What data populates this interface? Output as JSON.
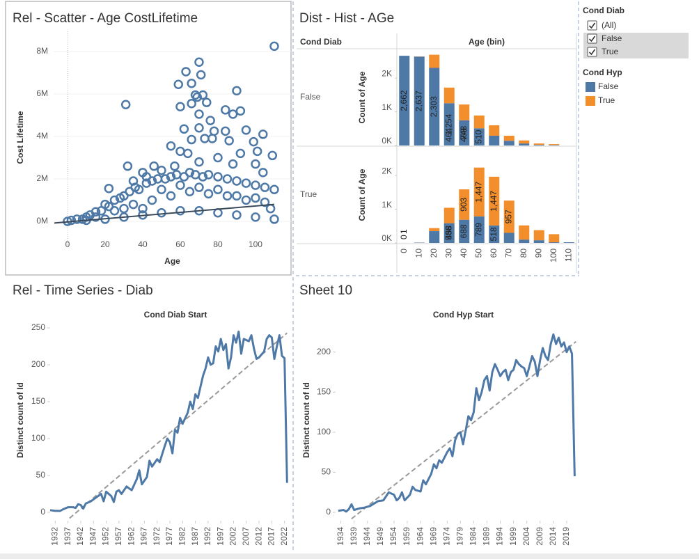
{
  "chart_data": [
    {
      "type": "scatter",
      "title": "Rel - Scatter - Age CostLifetime",
      "xlabel": "Age",
      "ylabel": "Cost Lifetime",
      "color": "#4e79a7",
      "grid": true,
      "x": [
        110,
        70,
        63,
        59,
        71,
        66,
        68,
        69,
        72,
        74,
        66,
        60,
        31,
        90,
        92,
        84,
        88,
        70,
        76,
        62,
        70,
        78,
        84,
        95,
        104,
        99,
        86,
        77,
        73,
        66,
        55,
        64,
        60,
        80,
        92,
        101,
        109,
        32,
        88,
        100,
        46,
        50,
        57,
        40,
        70,
        104,
        22,
        35,
        42,
        0,
        2,
        5,
        8,
        10,
        12,
        15,
        18,
        20,
        22,
        25,
        28,
        30,
        33,
        36,
        38,
        42,
        45,
        48,
        52,
        55,
        58,
        62,
        65,
        68,
        72,
        75,
        80,
        85,
        90,
        95,
        100,
        105,
        110,
        10,
        20,
        30,
        40,
        50,
        60,
        70,
        80,
        90,
        100,
        110,
        25,
        35,
        45,
        55,
        65,
        75,
        85,
        95,
        105,
        15,
        50,
        60,
        70,
        80,
        90,
        100,
        108,
        40,
        30
      ],
      "y": [
        8.25,
        7.5,
        7.05,
        6.45,
        6.9,
        6.5,
        5.95,
        5.85,
        5.95,
        5.6,
        5.55,
        5.4,
        5.5,
        6.15,
        5.2,
        5.25,
        5.05,
        5.05,
        4.75,
        4.35,
        4.4,
        4.25,
        4.25,
        4.3,
        4.1,
        3.75,
        3.8,
        3.9,
        3.9,
        3.85,
        3.55,
        3.2,
        3.3,
        3.0,
        3.2,
        3.3,
        3.1,
        2.6,
        2.7,
        2.7,
        2.6,
        2.4,
        2.6,
        2.3,
        2.8,
        2.3,
        1.55,
        1.9,
        2.1,
        0,
        0.05,
        0.1,
        0.1,
        0.2,
        0.3,
        0.45,
        0.5,
        0.8,
        0.7,
        1.0,
        1.1,
        1.2,
        1.4,
        1.6,
        1.5,
        1.8,
        1.9,
        2.0,
        2.0,
        2.1,
        2.2,
        2.1,
        2.3,
        2.2,
        2.1,
        2.2,
        2.1,
        2.0,
        1.9,
        1.8,
        1.7,
        1.6,
        1.5,
        0.05,
        0.1,
        0.2,
        0.3,
        0.4,
        0.5,
        0.5,
        0.4,
        0.3,
        0.2,
        0.1,
        0.5,
        0.8,
        1.0,
        1.2,
        1.4,
        1.3,
        1.2,
        1.0,
        0.9,
        0.2,
        1.5,
        1.7,
        1.6,
        1.5,
        1.2,
        1.1,
        0.6,
        0.6,
        0.6
      ],
      "trend": {
        "x": [
          -7,
          110
        ],
        "y": [
          -0.08,
          0.8
        ]
      },
      "xlim": [
        -7.4,
        118.9
      ],
      "ylim": [
        -1.05,
        8.95
      ],
      "xticks": [
        0,
        20,
        40,
        60,
        80,
        100
      ],
      "yticks": [
        {
          "value": 0,
          "label": "0M"
        },
        {
          "value": 2,
          "label": "2M"
        },
        {
          "value": 4,
          "label": "4M"
        },
        {
          "value": 6,
          "label": "6M"
        },
        {
          "value": 8,
          "label": "8M"
        }
      ]
    },
    {
      "type": "stacked-bar",
      "title": "Dist - Hist - AGe",
      "row_header": "Cond Diab",
      "column_header": "Age (bin)",
      "ylabel": "Count of Age",
      "categories": [
        0,
        10,
        20,
        30,
        40,
        50,
        60,
        70,
        80,
        90,
        100,
        110
      ],
      "ylim": [
        0,
        2850
      ],
      "yticks": [
        {
          "value": 0,
          "label": "0K"
        },
        {
          "value": 1000,
          "label": "1K"
        },
        {
          "value": 2000,
          "label": "2K"
        }
      ],
      "panels": [
        {
          "name": "False",
          "series": [
            {
              "name": "False",
              "color": "#4e79a7",
              "values": [
                2662,
                2637,
                2303,
                1254,
                748,
                510,
                290,
                140,
                60,
                20,
                15,
                0
              ],
              "value_labels": [
                "2,662",
                "2,637",
                "2,303",
                "1,254",
                "748",
                "510",
                null,
                null,
                null,
                null,
                null,
                null
              ]
            },
            {
              "name": "True",
              "color": "#f28e2b",
              "values": [
                0,
                5,
                390,
                464,
                468,
                380,
                310,
                150,
                90,
                40,
                25,
                0
              ],
              "value_labels": [
                null,
                null,
                null,
                "464",
                "468",
                null,
                null,
                null,
                null,
                null,
                null,
                null
              ]
            }
          ]
        },
        {
          "name": "True",
          "series": [
            {
              "name": "False",
              "color": "#4e79a7",
              "values": [
                1,
                10,
                350,
                586,
                688,
                789,
                518,
                300,
                100,
                80,
                20,
                20
              ],
              "value_labels": [
                "1",
                null,
                null,
                "586",
                "688",
                "789",
                "518",
                null,
                null,
                null,
                null,
                null
              ]
            },
            {
              "name": "True",
              "color": "#f28e2b",
              "values": [
                0,
                0,
                90,
                458,
                903,
                1447,
                1447,
                957,
                420,
                300,
                240,
                0
              ],
              "value_labels": [
                "0",
                null,
                null,
                "458",
                "903",
                "1,447",
                "1,447",
                "957",
                null,
                null,
                null,
                null
              ]
            }
          ]
        }
      ]
    },
    {
      "type": "line",
      "title": "Rel - Time Series - Diab",
      "header": "Cond Diab Start",
      "ylabel": "Distinct count of Id",
      "color": "#4e79a7",
      "x": [
        1930,
        1932,
        1934,
        1935,
        1937,
        1939,
        1940,
        1941,
        1942,
        1943,
        1944,
        1946,
        1948,
        1950,
        1951,
        1952,
        1954,
        1955,
        1956,
        1957,
        1958,
        1960,
        1962,
        1964,
        1965,
        1966,
        1968,
        1969,
        1970,
        1972,
        1973,
        1975,
        1976,
        1977,
        1978,
        1979,
        1980,
        1981,
        1982,
        1984,
        1985,
        1986,
        1987,
        1988,
        1990,
        1991,
        1992,
        1993,
        1994,
        1995,
        1996,
        1997,
        1998,
        1999,
        2000,
        2001,
        2002,
        2003,
        2004,
        2005,
        2006,
        2008,
        2009,
        2010,
        2011,
        2012,
        2014,
        2015,
        2016,
        2017,
        2018,
        2019,
        2020,
        2021,
        2022,
        2023
      ],
      "values": [
        3,
        2,
        2,
        4,
        7,
        7,
        6,
        11,
        10,
        5,
        12,
        15,
        20,
        25,
        15,
        28,
        22,
        14,
        28,
        30,
        25,
        35,
        30,
        45,
        57,
        38,
        48,
        70,
        62,
        72,
        68,
        90,
        100,
        95,
        80,
        112,
        108,
        128,
        120,
        135,
        150,
        140,
        160,
        155,
        185,
        195,
        210,
        200,
        202,
        225,
        218,
        235,
        220,
        228,
        195,
        210,
        240,
        230,
        245,
        215,
        235,
        232,
        240,
        222,
        208,
        210,
        218,
        235,
        240,
        237,
        208,
        225,
        240,
        212,
        209,
        40
      ],
      "trend": {
        "x": [
          1937.6,
          2023
        ],
        "y": [
          -8,
          243
        ]
      },
      "xlim": [
        1930,
        2024
      ],
      "ylim": [
        -8.5,
        258.5
      ],
      "xticks": [
        1932,
        1937,
        1942,
        1947,
        1952,
        1957,
        1962,
        1967,
        1972,
        1977,
        1982,
        1987,
        1992,
        1997,
        2002,
        2007,
        2012,
        2017,
        2022
      ],
      "yticks": [
        0,
        50,
        100,
        150,
        200,
        250
      ]
    },
    {
      "type": "line",
      "title": "Sheet 10",
      "header": "Cond Hyp Start",
      "ylabel": "Distinct count of Id",
      "color": "#4e79a7",
      "x": [
        1933,
        1935,
        1936,
        1937,
        1938,
        1939,
        1941,
        1943,
        1945,
        1947,
        1948,
        1950,
        1951,
        1952,
        1954,
        1955,
        1956,
        1957,
        1958,
        1960,
        1961,
        1962,
        1964,
        1965,
        1966,
        1968,
        1969,
        1970,
        1971,
        1972,
        1974,
        1975,
        1976,
        1977,
        1978,
        1979,
        1980,
        1982,
        1983,
        1984,
        1985,
        1986,
        1987,
        1988,
        1989,
        1990,
        1991,
        1992,
        1993,
        1994,
        1995,
        1996,
        1997,
        1998,
        1999,
        2000,
        2001,
        2002,
        2003,
        2004,
        2006,
        2007,
        2008,
        2009,
        2010,
        2011,
        2012,
        2013,
        2014,
        2015,
        2016,
        2017,
        2018,
        2019,
        2020,
        2021,
        2022
      ],
      "values": [
        2,
        3,
        1,
        4,
        10,
        3,
        5,
        6,
        8,
        12,
        14,
        15,
        20,
        25,
        22,
        15,
        18,
        25,
        15,
        22,
        32,
        28,
        26,
        40,
        35,
        48,
        60,
        55,
        65,
        62,
        75,
        80,
        70,
        90,
        98,
        100,
        85,
        120,
        115,
        125,
        155,
        140,
        150,
        165,
        170,
        152,
        175,
        185,
        178,
        170,
        175,
        178,
        165,
        175,
        178,
        190,
        185,
        182,
        180,
        170,
        195,
        188,
        170,
        190,
        205,
        195,
        190,
        210,
        222,
        210,
        218,
        207,
        212,
        200,
        207,
        198,
        45
      ],
      "trend": {
        "x": [
          1938,
          2022.5
        ],
        "y": [
          -8,
          213
        ]
      },
      "xlim": [
        1932,
        2024
      ],
      "ylim": [
        -7.8,
        238
      ],
      "xticks": [
        1934,
        1939,
        1944,
        1949,
        1954,
        1959,
        1964,
        1969,
        1974,
        1979,
        1984,
        1989,
        1994,
        1999,
        2004,
        2009,
        2014,
        2019
      ],
      "yticks": [
        0,
        50,
        100,
        150,
        200
      ]
    }
  ],
  "filters": {
    "cond_diab": {
      "title": "Cond Diab",
      "items": [
        "(All)",
        "False",
        "True"
      ],
      "checked": [
        true,
        true,
        true
      ]
    },
    "cond_hyp": {
      "title": "Cond Hyp"
    }
  }
}
